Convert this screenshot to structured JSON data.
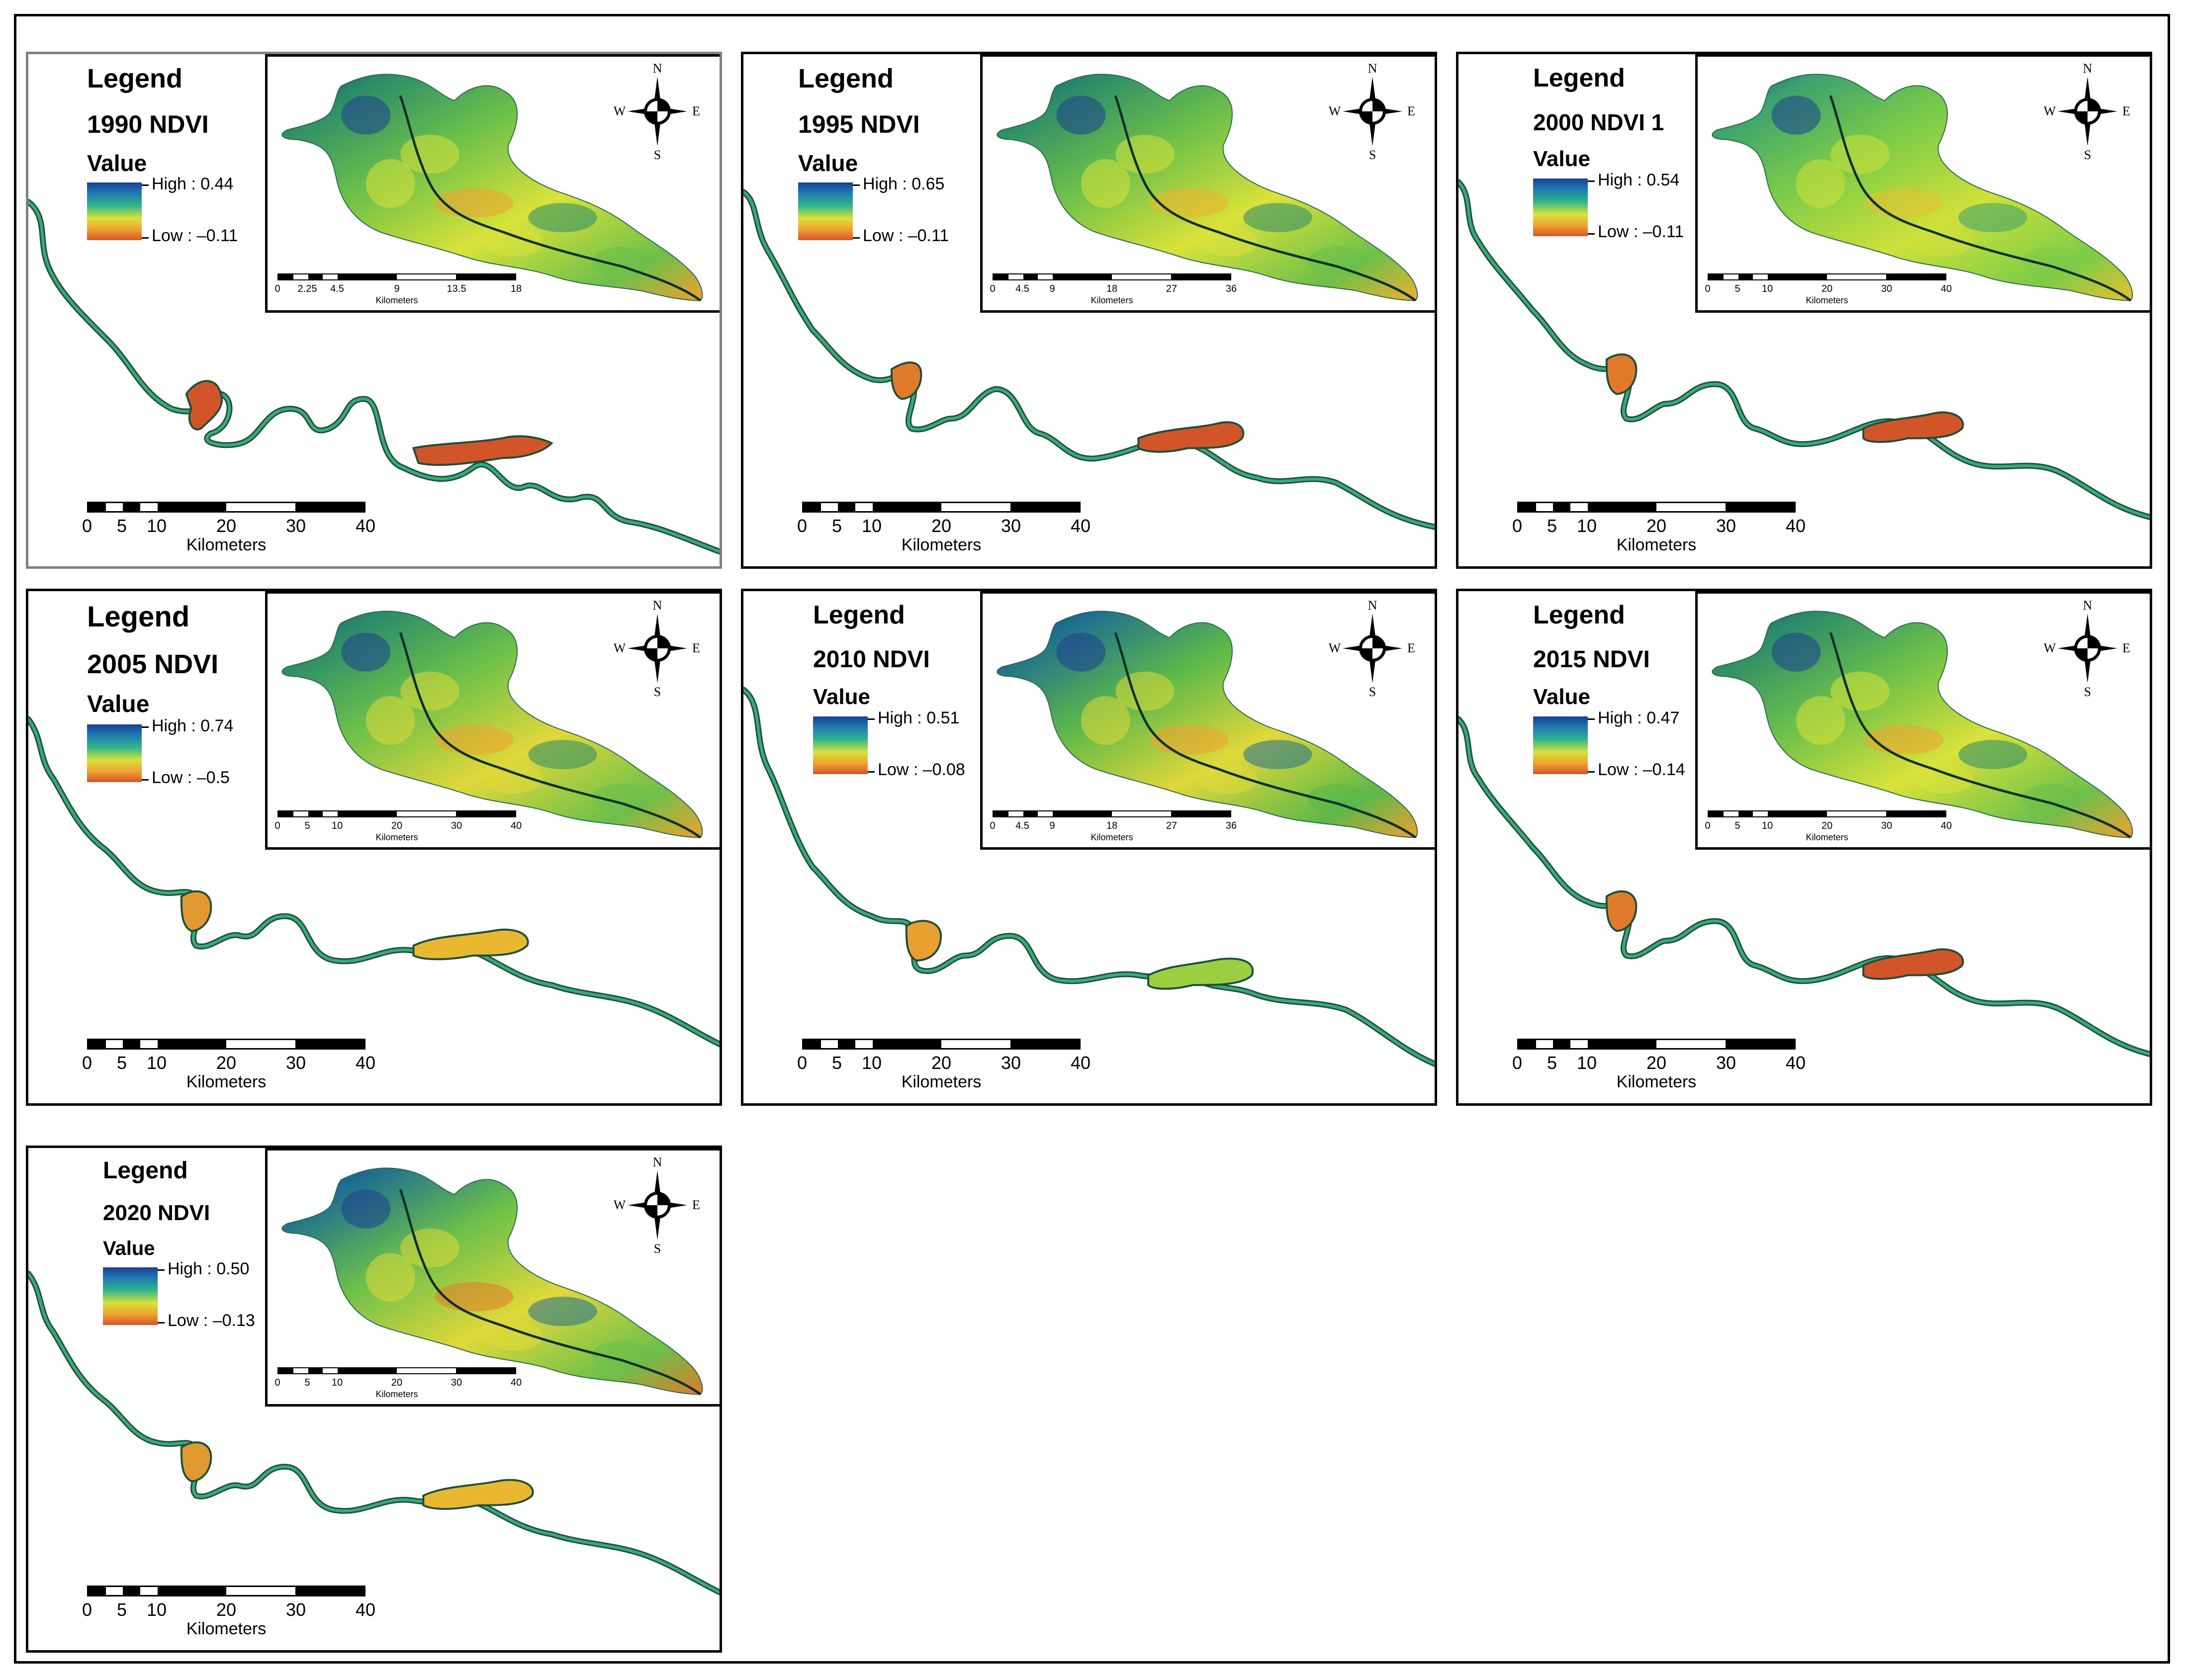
{
  "figure": {
    "legend_heading": "Legend",
    "value_heading": "Value",
    "unit_label": "Kilometers",
    "colors": {
      "high": "#1b3f8f",
      "mid_high": "#2fb58a",
      "mid": "#d8e23a",
      "low": "#d2552a",
      "river_dark": "#1d4f3a"
    }
  },
  "panels": [
    {
      "id": "p1990",
      "title": "1990 NDVI",
      "high": "High : 0.44",
      "low": "Low : –0.11",
      "inset_ticks": [
        "0",
        "2.25",
        "4.5",
        "9",
        "13.5",
        "18"
      ],
      "main_ticks": [
        "0",
        "5",
        "10",
        "20",
        "30",
        "40"
      ]
    },
    {
      "id": "p1995",
      "title": "1995 NDVI",
      "high": "High : 0.65",
      "low": "Low : –0.11",
      "inset_ticks": [
        "0",
        "4.5",
        "9",
        "18",
        "27",
        "36"
      ],
      "main_ticks": [
        "0",
        "5",
        "10",
        "20",
        "30",
        "40"
      ]
    },
    {
      "id": "p2000",
      "title": "2000 NDVI 1",
      "high": "High : 0.54",
      "low": "Low : –0.11",
      "inset_ticks": [
        "0",
        "5",
        "10",
        "20",
        "30",
        "40"
      ],
      "main_ticks": [
        "0",
        "5",
        "10",
        "20",
        "30",
        "40"
      ]
    },
    {
      "id": "p2005",
      "title": "2005 NDVI",
      "high": "High : 0.74",
      "low": "Low : –0.5",
      "inset_ticks": [
        "0",
        "5",
        "10",
        "20",
        "30",
        "40"
      ],
      "main_ticks": [
        "0",
        "5",
        "10",
        "20",
        "30",
        "40"
      ]
    },
    {
      "id": "p2010",
      "title": "2010 NDVI",
      "high": "High : 0.51",
      "low": "Low : –0.08",
      "inset_ticks": [
        "0",
        "4.5",
        "9",
        "18",
        "27",
        "36"
      ],
      "main_ticks": [
        "0",
        "5",
        "10",
        "20",
        "30",
        "40"
      ]
    },
    {
      "id": "p2015",
      "title": "2015 NDVI",
      "high": "High : 0.47",
      "low": "Low : –0.14",
      "inset_ticks": [
        "0",
        "5",
        "10",
        "20",
        "30",
        "40"
      ],
      "main_ticks": [
        "0",
        "5",
        "10",
        "20",
        "30",
        "40"
      ]
    },
    {
      "id": "p2020",
      "title": "2020 NDVI",
      "high": "High : 0.50",
      "low": "Low : –0.13",
      "inset_ticks": [
        "0",
        "5",
        "10",
        "20",
        "30",
        "40"
      ],
      "main_ticks": [
        "0",
        "5",
        "10",
        "20",
        "30",
        "40"
      ]
    }
  ],
  "compass": {
    "n": "N",
    "s": "S",
    "e": "E",
    "w": "W"
  }
}
